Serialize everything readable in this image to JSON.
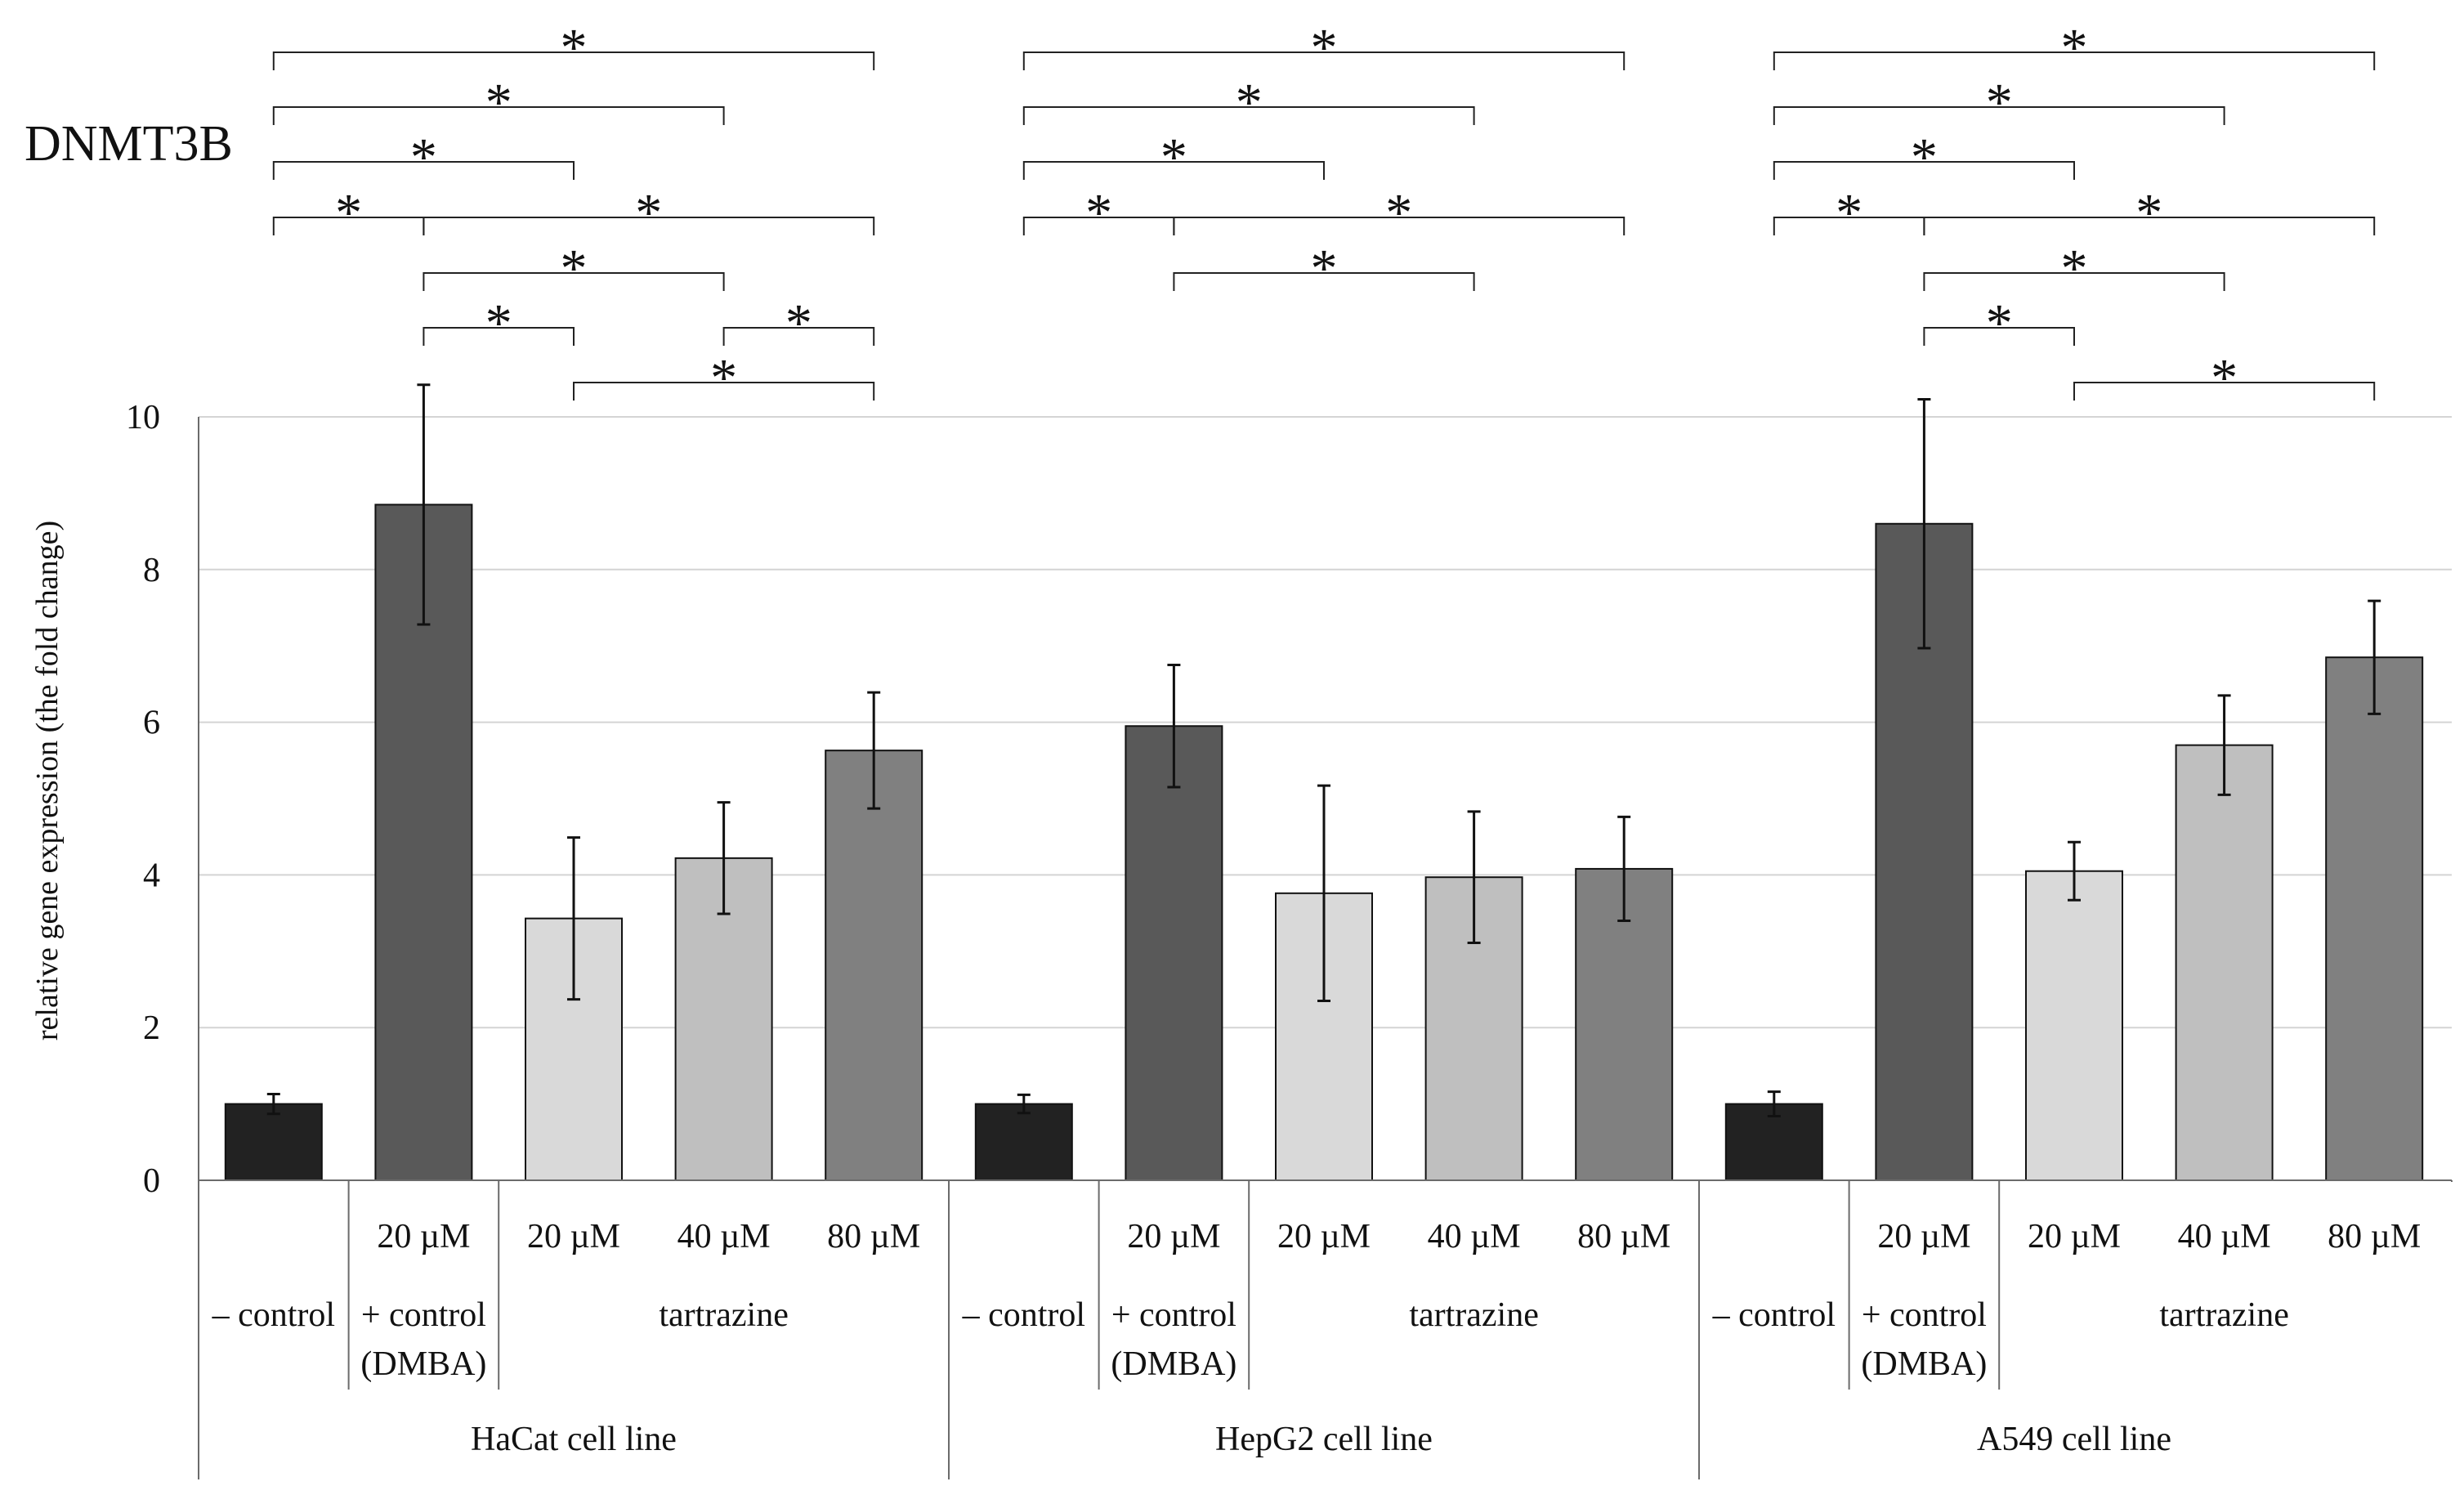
{
  "chart_data": {
    "type": "bar",
    "title": "DNMT3B",
    "ylabel": "relative gene expression (the fold change)",
    "xlabel": "",
    "ylim": [
      0,
      10
    ],
    "yticks": [
      "0",
      "2",
      "4",
      "6",
      "8",
      "10"
    ],
    "grid": true,
    "colors": {
      "neg_control": "#222222",
      "pos_control": "#595959",
      "tart_20": "#d9d9d9",
      "tart_40": "#bfbfbf",
      "tart_80": "#808080",
      "axis": "#6b6b6b",
      "grid": "#d4d4d4",
      "ink": "#111111"
    },
    "groups": [
      {
        "name": "HaCat cell line",
        "bars": [
          {
            "key": "neg_control",
            "value": 1.0,
            "err": 0.13
          },
          {
            "key": "pos_control",
            "value": 8.85,
            "err": 1.57
          },
          {
            "key": "tart_20",
            "value": 3.43,
            "err": 1.06
          },
          {
            "key": "tart_40",
            "value": 4.22,
            "err": 0.73
          },
          {
            "key": "tart_80",
            "value": 5.63,
            "err": 0.76
          }
        ],
        "brackets": [
          {
            "from": 0,
            "to": 4,
            "row": 0,
            "label": "*"
          },
          {
            "from": 0,
            "to": 3,
            "row": 1,
            "label": "*"
          },
          {
            "from": 0,
            "to": 2,
            "row": 2,
            "label": "*"
          },
          {
            "from": 0,
            "to": 1,
            "row": 3,
            "label": "*"
          },
          {
            "from": 1,
            "to": 4,
            "row": 3,
            "label": "*"
          },
          {
            "from": 1,
            "to": 3,
            "row": 4,
            "label": "*"
          },
          {
            "from": 1,
            "to": 2,
            "row": 5,
            "label": "*"
          },
          {
            "from": 3,
            "to": 4,
            "row": 5,
            "label": "*"
          },
          {
            "from": 2,
            "to": 4,
            "row": 6,
            "label": "*"
          }
        ]
      },
      {
        "name": "HepG2 cell line",
        "bars": [
          {
            "key": "neg_control",
            "value": 1.0,
            "err": 0.12
          },
          {
            "key": "pos_control",
            "value": 5.95,
            "err": 0.8
          },
          {
            "key": "tart_20",
            "value": 3.76,
            "err": 1.41
          },
          {
            "key": "tart_40",
            "value": 3.97,
            "err": 0.86
          },
          {
            "key": "tart_80",
            "value": 4.08,
            "err": 0.68
          }
        ],
        "brackets": [
          {
            "from": 0,
            "to": 4,
            "row": 0,
            "label": "*"
          },
          {
            "from": 0,
            "to": 3,
            "row": 1,
            "label": "*"
          },
          {
            "from": 0,
            "to": 2,
            "row": 2,
            "label": "*"
          },
          {
            "from": 0,
            "to": 1,
            "row": 3,
            "label": "*"
          },
          {
            "from": 1,
            "to": 4,
            "row": 3,
            "label": "*"
          },
          {
            "from": 1,
            "to": 3,
            "row": 4,
            "label": "*"
          }
        ]
      },
      {
        "name": "A549 cell line",
        "bars": [
          {
            "key": "neg_control",
            "value": 1.0,
            "err": 0.16
          },
          {
            "key": "pos_control",
            "value": 8.6,
            "err": 1.63
          },
          {
            "key": "tart_20",
            "value": 4.05,
            "err": 0.38
          },
          {
            "key": "tart_40",
            "value": 5.7,
            "err": 0.65
          },
          {
            "key": "tart_80",
            "value": 6.85,
            "err": 0.74
          }
        ],
        "brackets": [
          {
            "from": 0,
            "to": 4,
            "row": 0,
            "label": "*"
          },
          {
            "from": 0,
            "to": 3,
            "row": 1,
            "label": "*"
          },
          {
            "from": 0,
            "to": 2,
            "row": 2,
            "label": "*"
          },
          {
            "from": 0,
            "to": 1,
            "row": 3,
            "label": "*"
          },
          {
            "from": 1,
            "to": 4,
            "row": 3,
            "label": "*"
          },
          {
            "from": 1,
            "to": 3,
            "row": 4,
            "label": "*"
          },
          {
            "from": 1,
            "to": 2,
            "row": 5,
            "label": "*"
          },
          {
            "from": 2,
            "to": 4,
            "row": 6,
            "label": "*"
          }
        ]
      }
    ],
    "category_labels": {
      "neg_control": {
        "concentration": "",
        "name": "– control"
      },
      "pos_control": {
        "concentration": "20 µM",
        "name": "+ control",
        "sub": "(DMBA)"
      },
      "tart_20": {
        "concentration": "20 µM"
      },
      "tart_40": {
        "concentration": "40 µM"
      },
      "tart_80": {
        "concentration": "80 µM"
      }
    },
    "tartrazine_label": "tartrazine"
  }
}
